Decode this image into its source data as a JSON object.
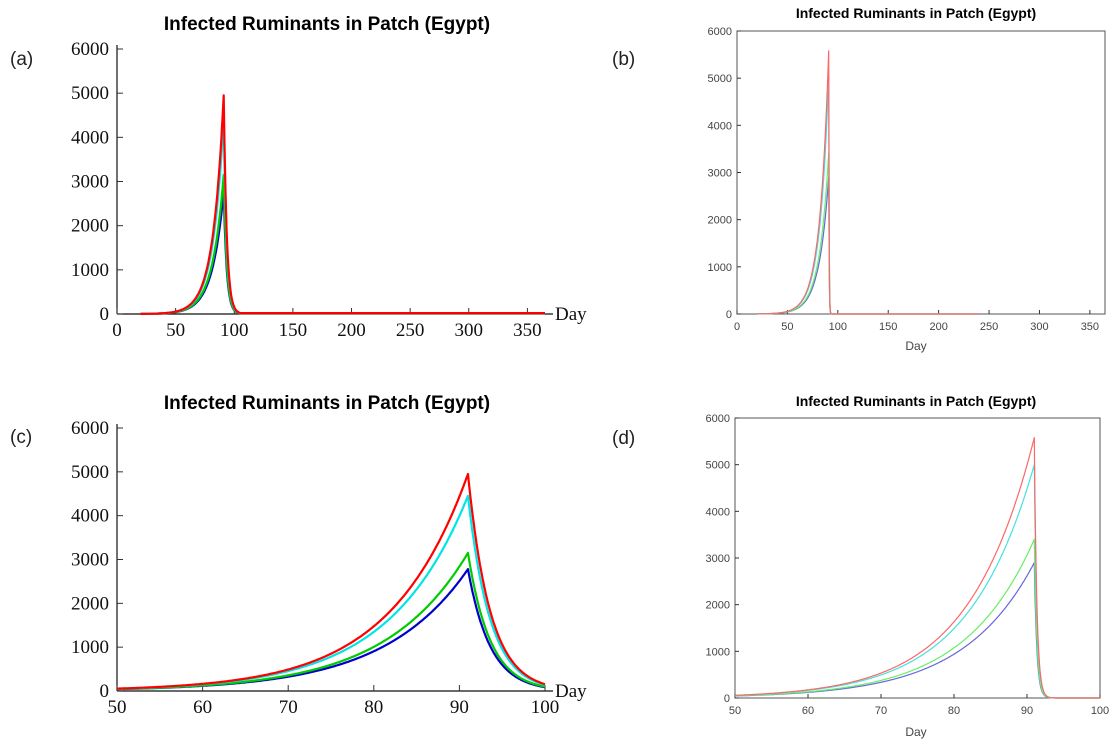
{
  "chart_data": [
    {
      "panel": "(a)",
      "type": "line",
      "title": "Infected Ruminants in Patch (Egypt)",
      "xlabel": "Day",
      "ylabel": "",
      "xlim": [
        0,
        365
      ],
      "ylim": [
        0,
        6000
      ],
      "xticks": [
        0,
        50,
        100,
        150,
        200,
        250,
        300,
        350
      ],
      "yticks": [
        0,
        1000,
        2000,
        3000,
        4000,
        5000,
        6000
      ],
      "series": [
        {
          "color": "#ff0000",
          "peak": 4950
        },
        {
          "color": "#00e5e5",
          "peak": 4450
        },
        {
          "color": "#00cc00",
          "peak": 3150
        },
        {
          "color": "#0000cc",
          "peak": 2780
        }
      ]
    },
    {
      "panel": "(b)",
      "type": "line",
      "title": "Infected Ruminants in Patch (Egypt)",
      "xlabel": "Day",
      "ylabel": "",
      "xlim": [
        0,
        365
      ],
      "ylim": [
        0,
        6000
      ],
      "xticks": [
        0,
        50,
        100,
        150,
        200,
        250,
        300,
        350
      ],
      "yticks": [
        0,
        1000,
        2000,
        3000,
        4000,
        5000,
        6000
      ],
      "series": [
        {
          "color": "#ff6666",
          "peak": 5580
        },
        {
          "color": "#44e0e0",
          "peak": 5000
        },
        {
          "color": "#66ee66",
          "peak": 3400
        },
        {
          "color": "#6666dd",
          "peak": 2900
        }
      ]
    },
    {
      "panel": "(c)",
      "type": "line",
      "title": "Infected Ruminants in Patch (Egypt)",
      "xlabel": "Day",
      "ylabel": "",
      "xlim": [
        50,
        100
      ],
      "ylim": [
        0,
        6000
      ],
      "xticks": [
        50,
        60,
        70,
        80,
        90,
        100
      ],
      "yticks": [
        0,
        1000,
        2000,
        3000,
        4000,
        5000,
        6000
      ],
      "series": [
        {
          "color": "#ff0000",
          "peak": 4950
        },
        {
          "color": "#00e5e5",
          "peak": 4450
        },
        {
          "color": "#00cc00",
          "peak": 3150
        },
        {
          "color": "#0000cc",
          "peak": 2780
        }
      ]
    },
    {
      "panel": "(d)",
      "type": "line",
      "title": "Infected Ruminants in Patch (Egypt)",
      "xlabel": "Day",
      "ylabel": "",
      "xlim": [
        50,
        100
      ],
      "ylim": [
        0,
        6000
      ],
      "xticks": [
        50,
        60,
        70,
        80,
        90,
        100
      ],
      "yticks": [
        0,
        1000,
        2000,
        3000,
        4000,
        5000,
        6000
      ],
      "series": [
        {
          "color": "#ff6666",
          "peak": 5580
        },
        {
          "color": "#44e0e0",
          "peak": 5000
        },
        {
          "color": "#66ee66",
          "peak": 3400
        },
        {
          "color": "#6666dd",
          "peak": 2900
        }
      ]
    }
  ]
}
